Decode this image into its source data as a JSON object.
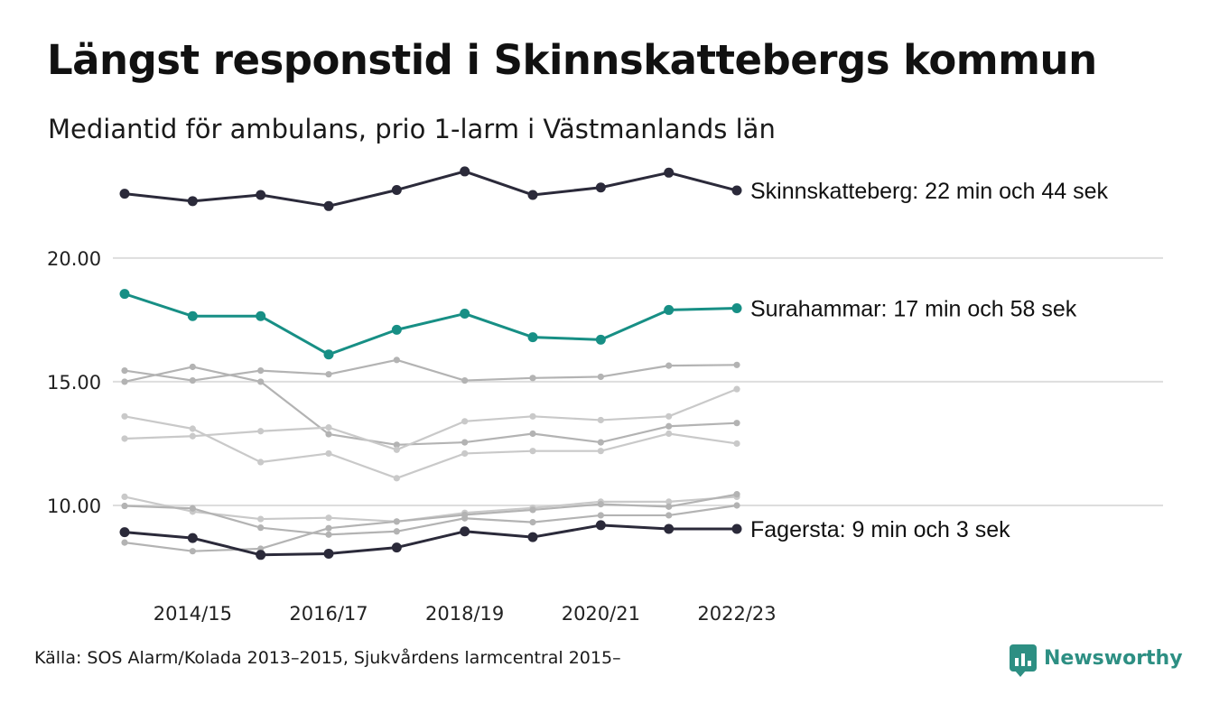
{
  "header": {
    "title": "Längst responstid i Skinnskattebergs kommun",
    "subtitle": "Mediantid för ambulans, prio 1-larm i Västmanlands län"
  },
  "footer": {
    "source": "Källa: SOS Alarm/Kolada 2013–2015, Sjukvårdens larmcentral 2015–",
    "brand": "Newsworthy"
  },
  "colors": {
    "highlight_dark": "#2b2a3a",
    "highlight_teal": "#178f85",
    "gray_1": "#b3b3b3",
    "gray_2": "#c9c9c9",
    "grid": "#dddddd",
    "brand": "#2d8f83"
  },
  "chart_data": {
    "type": "line",
    "x": [
      "2013/14",
      "2014/15",
      "2015/16",
      "2016/17",
      "2017/18",
      "2018/19",
      "2019/20",
      "2020/21",
      "2021/22",
      "2022/23"
    ],
    "xticks": [
      "2014/15",
      "2016/17",
      "2018/19",
      "2020/21",
      "2022/23"
    ],
    "yticks": [
      10,
      15,
      20
    ],
    "ytick_labels": [
      "10.00",
      "15.00",
      "20.00"
    ],
    "ylim": [
      7.3,
      24.3
    ],
    "grid": "horizontal",
    "series": [
      {
        "values": [
          15.45,
          15.05,
          15.45,
          15.3,
          15.88,
          15.05,
          15.15,
          15.2,
          15.65,
          15.68
        ],
        "color": "#b3b3b3"
      },
      {
        "values": [
          15.0,
          15.6,
          15.0,
          12.88,
          12.45,
          12.55,
          12.9,
          12.55,
          13.2,
          13.33
        ],
        "color": "#b3b3b3"
      },
      {
        "values": [
          13.6,
          13.1,
          11.75,
          12.1,
          11.1,
          12.1,
          12.2,
          12.2,
          12.9,
          12.5
        ],
        "color": "#c9c9c9"
      },
      {
        "values": [
          12.7,
          12.8,
          13.0,
          13.15,
          12.25,
          13.4,
          13.6,
          13.45,
          13.6,
          14.7
        ],
        "color": "#c9c9c9"
      },
      {
        "values": [
          10.35,
          9.75,
          9.45,
          9.5,
          9.35,
          9.7,
          9.9,
          10.15,
          10.15,
          10.35
        ],
        "color": "#c9c9c9"
      },
      {
        "values": [
          9.98,
          9.88,
          9.1,
          8.82,
          8.95,
          9.48,
          9.32,
          9.6,
          9.6,
          10.0
        ],
        "color": "#b3b3b3"
      },
      {
        "values": [
          8.5,
          8.15,
          8.25,
          9.08,
          9.35,
          9.62,
          9.82,
          10.05,
          9.95,
          10.45
        ],
        "color": "#b3b3b3"
      },
      {
        "name": "Fagersta",
        "label": "Fagersta: 9 min och 3 sek",
        "values": [
          8.92,
          8.68,
          8.0,
          8.05,
          8.3,
          8.95,
          8.72,
          9.2,
          9.05,
          9.05
        ],
        "color": "#2b2a3a",
        "highlight": true
      },
      {
        "name": "Surahammar",
        "label": "Surahammar: 17 min och 58 sek",
        "values": [
          18.55,
          17.65,
          17.65,
          16.1,
          17.1,
          17.75,
          16.8,
          16.7,
          17.9,
          17.97
        ],
        "color": "#178f85",
        "highlight": true
      },
      {
        "name": "Skinnskatteberg",
        "label": "Skinnskatteberg: 22 min och 44 sek",
        "values": [
          22.6,
          22.3,
          22.55,
          22.1,
          22.75,
          23.5,
          22.55,
          22.85,
          23.45,
          22.73
        ],
        "color": "#2b2a3a",
        "highlight": true
      }
    ]
  }
}
